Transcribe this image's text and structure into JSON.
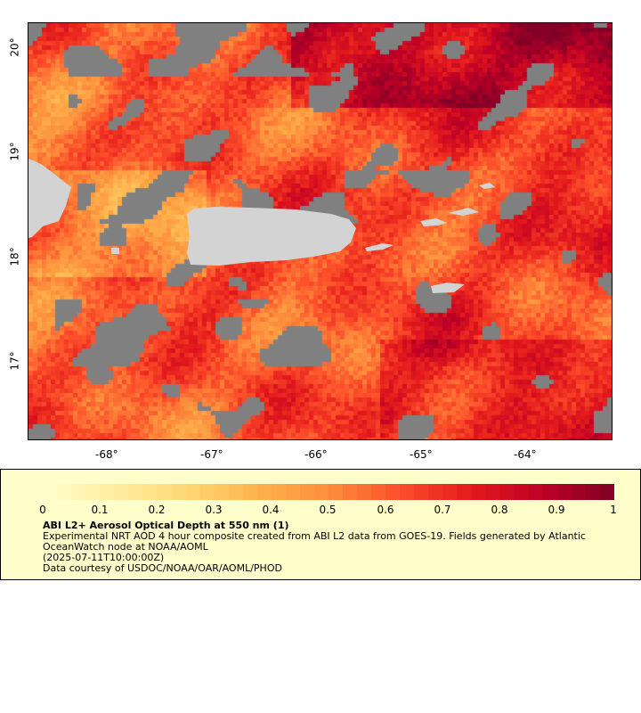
{
  "map": {
    "lon_ticks": [
      "-68°",
      "-67°",
      "-66°",
      "-65°",
      "-64°"
    ],
    "lat_ticks": [
      "20°",
      "19°",
      "18°",
      "17°"
    ],
    "extent": {
      "lon_min": -68.7,
      "lon_max": -63.1,
      "lat_min": 16.4,
      "lat_max": 20.2
    },
    "colors": {
      "land": "#d3d3d3",
      "nodata": "#808080",
      "border": "#000000"
    }
  },
  "legend": {
    "colorbar_ticks": [
      "0",
      "0.1",
      "0.2",
      "0.3",
      "0.4",
      "0.5",
      "0.6",
      "0.7",
      "0.8",
      "0.9",
      "1"
    ],
    "colormap": "YlOrRd",
    "range": [
      0,
      1
    ],
    "title": "ABI L2+ Aerosol Optical Depth at 550 nm (1)",
    "description": "Experimental NRT AOD 4 hour composite created from ABI L2 data from GOES-19. Fields generated by Atlantic OceanWatch node at NOAA/AOML",
    "timestamp": "(2025-07-11T10:00:00Z)",
    "credit": "Data courtesy of USDOC/NOAA/OAR/AOML/PHOD",
    "background": "#ffffcc"
  }
}
